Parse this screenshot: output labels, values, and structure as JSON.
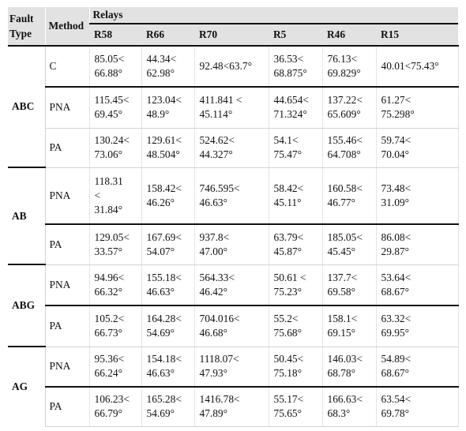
{
  "headers": {
    "fault_type": "Fault Type",
    "method": "Method",
    "relays": "Relays",
    "relay_names": [
      "R58",
      "R66",
      "R70",
      "R5",
      "R46",
      "R15"
    ]
  },
  "groups": [
    {
      "fault": "ABC",
      "rows": [
        {
          "method": "C",
          "values": [
            "85.05<\n66.88°",
            "44.34<\n62.98°",
            "92.48<63.7°",
            "36.53<\n68.875°",
            "76.13<\n69.829°",
            "40.01<75.43°"
          ]
        },
        {
          "method": "PNA",
          "values": [
            "115.45<\n 69.45°",
            "123.04<\n48.9°",
            "411.841 <\n45.114°",
            "44.654<\n71.324°",
            "137.22<\n65.609°",
            "61.27<\n75.298°"
          ]
        },
        {
          "method": "PA",
          "values": [
            "130.24<\n 73.06°",
            "129.61<\n48.504°",
            "524.62<\n44.327°",
            "54.1<\n75.47°",
            "155.46<\n64.708°",
            "59.74<\n70.04°"
          ]
        }
      ]
    },
    {
      "fault": "AB",
      "rows": [
        {
          "method": "PNA",
          "values": [
            "118.31\n<\n31.84°",
            "158.42<\n46.26°",
            "746.595<\n46.63°",
            "58.42<\n45.11°",
            "160.58<\n46.77°",
            "73.48<\n31.09°"
          ]
        },
        {
          "method": "PA",
          "values": [
            "129.05<\n 33.57°",
            "167.69<\n54.07°",
            "937.8<\n47.00°",
            "63.79<\n45.87°",
            "185.05<\n45.45°",
            "86.08<\n29.87°"
          ]
        }
      ]
    },
    {
      "fault": "ABG",
      "rows": [
        {
          "method": "PNA",
          "values": [
            "94.96<\n66.32°",
            "155.18<\n46.63°",
            "564.33<\n46.42°",
            "50.61 <\n75.23°",
            "137.7<\n69.58°",
            "53.64<\n68.67°"
          ]
        },
        {
          "method": "PA",
          "values": [
            "105.2<\n66.73°",
            "164.28<\n 54.69°",
            "704.016<\n46.68°",
            "55.2<\n75.68°",
            "158.1<\n69.15°",
            "63.32<\n69.95°"
          ]
        }
      ]
    },
    {
      "fault": "AG",
      "rows": [
        {
          "method": "PNA",
          "values": [
            "95.36<\n66.24°",
            "154.18<\n46.63°",
            "1118.07<\n47.93°",
            "50.45<\n75.18°",
            "146.03<\n68.78°",
            "54.89<\n68.67°"
          ]
        },
        {
          "method": "PA",
          "values": [
            "106.23<\n 66.79°",
            "165.28<\n54.69°",
            "1416.78<\n47.89°",
            "55.17<\n75.65°",
            "166.63<\n68.3°",
            "63.54<\n69.78°"
          ]
        }
      ]
    }
  ]
}
